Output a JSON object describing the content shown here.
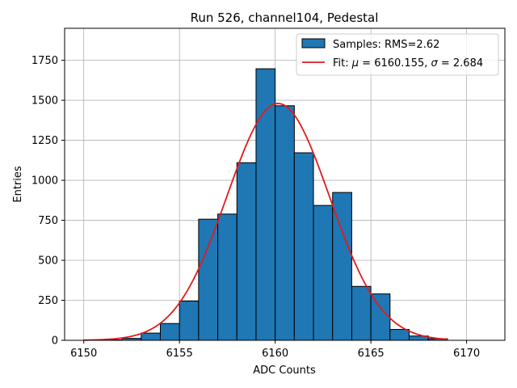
{
  "chart_data": {
    "type": "bar",
    "title": "Run 526, channel104, Pedestal",
    "xlabel": "ADC Counts",
    "ylabel": "Entries",
    "xlim": [
      6149,
      6172
    ],
    "ylim": [
      0,
      1950
    ],
    "xticks": [
      6150,
      6155,
      6160,
      6165,
      6170
    ],
    "yticks": [
      0,
      250,
      500,
      750,
      1000,
      1250,
      1500,
      1750
    ],
    "grid": true,
    "legend_position": "top-right",
    "bin_width": 1,
    "bins": [
      {
        "x": 6150,
        "value": 2
      },
      {
        "x": 6151,
        "value": 3
      },
      {
        "x": 6152,
        "value": 12
      },
      {
        "x": 6153,
        "value": 45
      },
      {
        "x": 6154,
        "value": 105
      },
      {
        "x": 6155,
        "value": 245
      },
      {
        "x": 6156,
        "value": 757
      },
      {
        "x": 6157,
        "value": 789
      },
      {
        "x": 6158,
        "value": 1110
      },
      {
        "x": 6159,
        "value": 1697
      },
      {
        "x": 6160,
        "value": 1466
      },
      {
        "x": 6161,
        "value": 1172
      },
      {
        "x": 6162,
        "value": 843
      },
      {
        "x": 6163,
        "value": 924
      },
      {
        "x": 6164,
        "value": 337
      },
      {
        "x": 6165,
        "value": 290
      },
      {
        "x": 6166,
        "value": 68
      },
      {
        "x": 6167,
        "value": 27
      },
      {
        "x": 6168,
        "value": 10
      }
    ],
    "fit": {
      "mu": 6160.155,
      "sigma": 2.684,
      "amplitude": 1480,
      "x_range": [
        6150,
        6169
      ]
    },
    "legend": {
      "histogram_label": "Samples: RMS=2.62",
      "fit_label_prefix": "Fit: ",
      "fit_mu_symbol": "μ",
      "fit_mu_value": " = 6160.155, ",
      "fit_sigma_symbol": "σ",
      "fit_sigma_value": " = 2.684"
    },
    "colors": {
      "bar_fill": "#1f77b4",
      "bar_edge": "#000000",
      "fit_line": "#e31a1c",
      "grid": "#b0b0b0"
    }
  }
}
